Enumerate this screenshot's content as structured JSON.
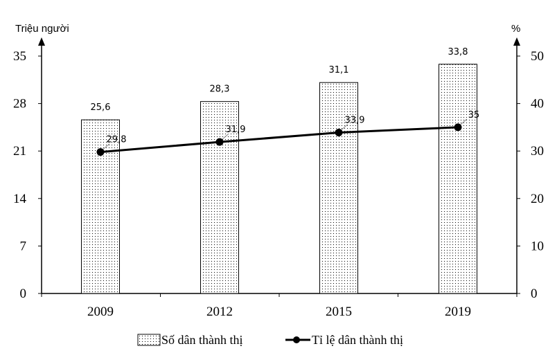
{
  "chart_data": {
    "type": "bar",
    "categories": [
      "2009",
      "2012",
      "2015",
      "2019"
    ],
    "series": [
      {
        "name": "Số dân thành thị",
        "type": "bar",
        "axis": "left",
        "values": [
          25.6,
          28.3,
          31.1,
          33.8
        ],
        "labels": [
          "25,6",
          "28,3",
          "31,1",
          "33,8"
        ]
      },
      {
        "name": "Tỉ lệ dân thành thị",
        "type": "line",
        "axis": "right",
        "values": [
          29.8,
          31.9,
          33.9,
          35
        ],
        "labels": [
          "29,8",
          "31,9",
          "33,9",
          "35"
        ]
      }
    ],
    "y_left": {
      "label": "Triệu người",
      "ylim": [
        0,
        35
      ],
      "ticks": [
        0,
        7,
        14,
        21,
        28,
        35
      ]
    },
    "y_right": {
      "label": "%",
      "ylim": [
        0,
        50
      ],
      "ticks": [
        0,
        10,
        20,
        30,
        40,
        50
      ]
    },
    "grid": false,
    "legend_position": "bottom-center",
    "colors": {
      "bar_fill": "#ffffff",
      "bar_dots": "#000000",
      "line": "#000000",
      "axis": "#000000"
    }
  }
}
